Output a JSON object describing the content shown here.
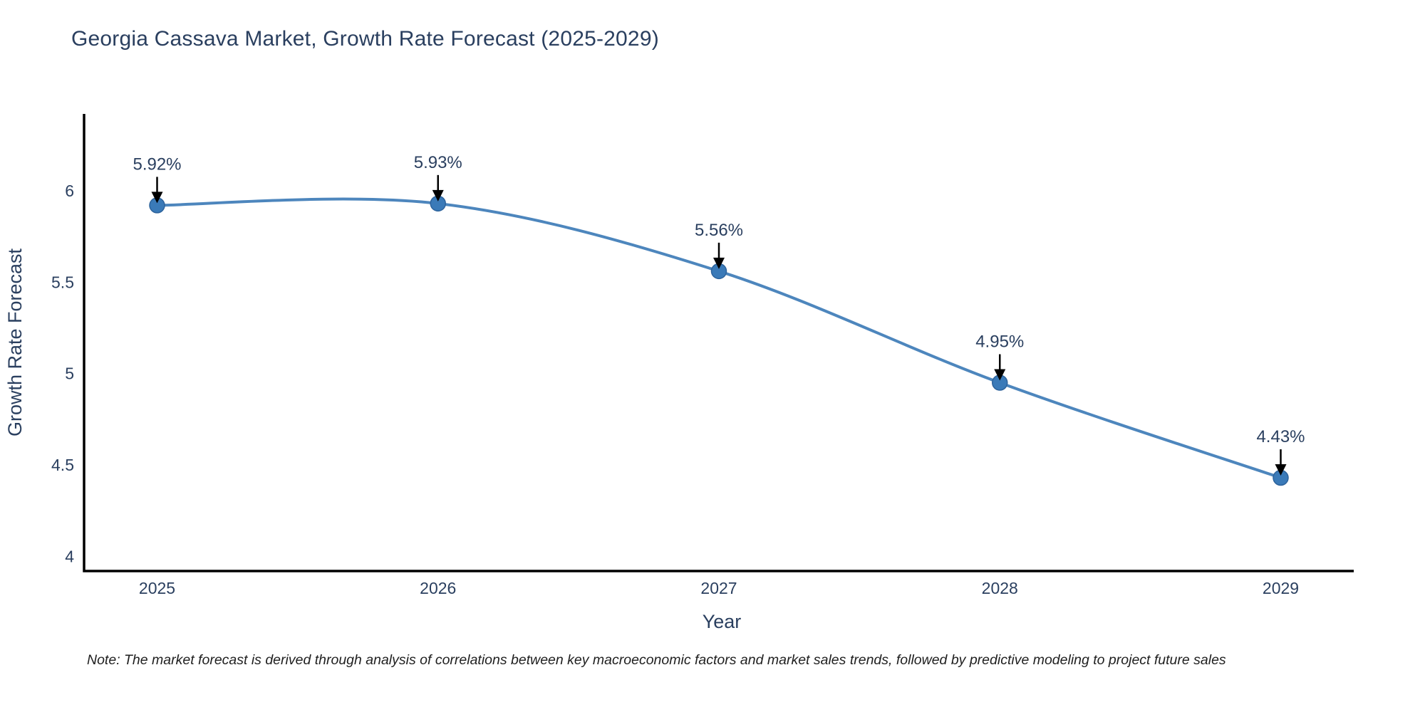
{
  "page": {
    "title": "Georgia Cassava Market, Growth Rate Forecast (2025-2029)",
    "note": "Note: The market forecast is derived through analysis of correlations between key macroeconomic factors and market sales trends, followed by predictive modeling to project future sales"
  },
  "chart_data": {
    "type": "line",
    "title": "Georgia Cassava Market, Growth Rate Forecast (2025-2029)",
    "xlabel": "Year",
    "ylabel": "Growth Rate Forecast",
    "x": [
      2025,
      2026,
      2027,
      2028,
      2029
    ],
    "y": [
      5.92,
      5.93,
      5.56,
      4.95,
      4.43
    ],
    "point_labels": [
      "5.92%",
      "5.93%",
      "5.56%",
      "4.95%",
      "4.43%"
    ],
    "x_tick_labels": [
      "2025",
      "2026",
      "2027",
      "2028",
      "2029"
    ],
    "x_tick_values": [
      2025,
      2026,
      2027,
      2028,
      2029
    ],
    "y_tick_labels": [
      "6",
      "5.5",
      "5",
      "4.5",
      "4"
    ],
    "y_tick_values": [
      6,
      5.5,
      5,
      4.5,
      4
    ],
    "xlim": [
      2024.74,
      2029.26
    ],
    "ylim": [
      3.92,
      6.42
    ],
    "line_shape": "spline",
    "grid": false,
    "legend": "none",
    "colors": {
      "line": "#4d86bd",
      "marker": "#3a7ab8",
      "marker_edge": "#2d639c",
      "axis": "#000000",
      "tick_text": "#2a3f5f",
      "axis_title_text": "#2a3f5f",
      "annotation_text": "#2a3f5f",
      "annotation_arrow": "#000000",
      "title_text": "#2a3f5f",
      "background": "#ffffff"
    }
  }
}
